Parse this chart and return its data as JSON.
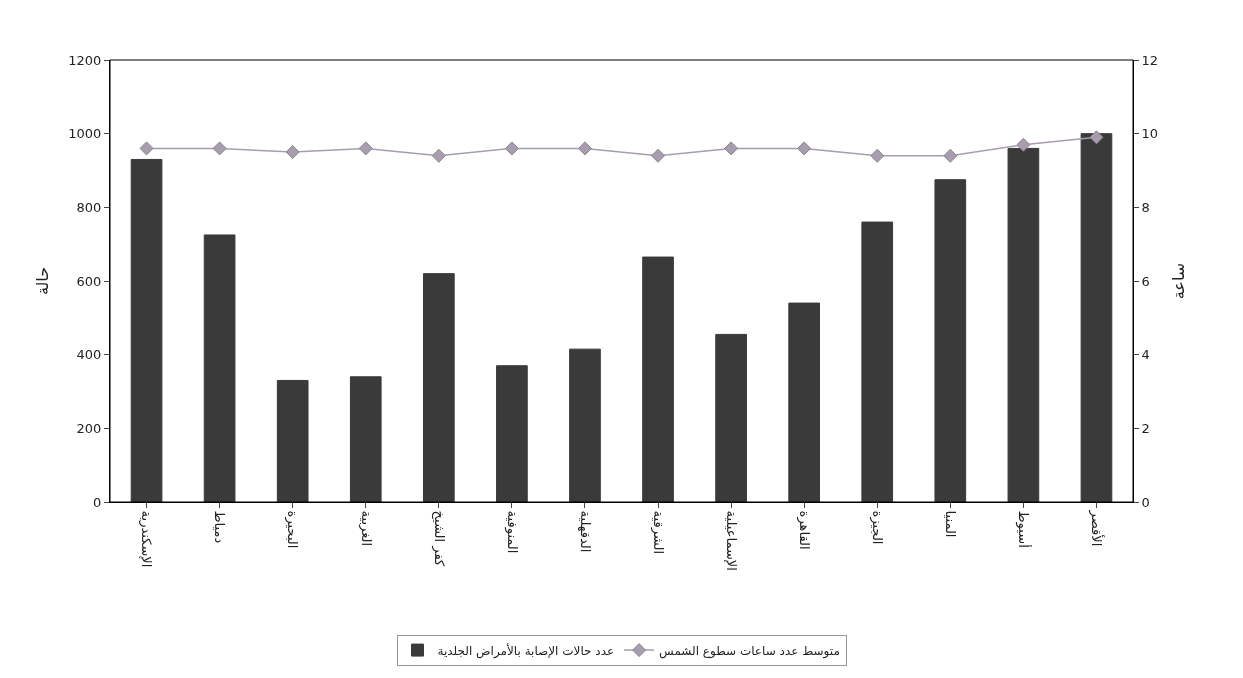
{
  "chart_data": {
    "type": "bar",
    "categories": [
      "الإسكندرية",
      "دمياط",
      "البحيرة",
      "الغربية",
      "كفر الشيخ",
      "المنوفية",
      "الدقهلية",
      "الشرقية",
      "الإسماعيلية",
      "القاهرة",
      "الجيزة",
      "المنيا",
      "أسيوط",
      "الأقصر"
    ],
    "series": [
      {
        "name": "عدد حالات الإصابة بالأمراض الجلدية",
        "color": "#3a3a3a",
        "values": [
          930,
          725,
          330,
          340,
          620,
          370,
          415,
          665,
          455,
          540,
          760,
          875,
          960,
          1000
        ]
      },
      {
        "name": "متوسط عدد ساعات سطوع الشمس",
        "type": "line",
        "axis": "y2",
        "color": "#a89cb0",
        "marker": "diamond",
        "values": [
          9.6,
          9.6,
          9.5,
          9.6,
          9.4,
          9.6,
          9.6,
          9.4,
          9.6,
          9.6,
          9.4,
          9.4,
          9.7,
          9.9
        ]
      }
    ],
    "ylabel": "حالة",
    "y2label": "ساعة",
    "ylim": [
      0,
      1200
    ],
    "yticks": [
      0,
      200,
      400,
      600,
      800,
      1000,
      1200
    ],
    "y2lim": [
      0,
      12
    ],
    "y2ticks": [
      0,
      2,
      4,
      6,
      8,
      10,
      12
    ],
    "legend": "bottom"
  }
}
